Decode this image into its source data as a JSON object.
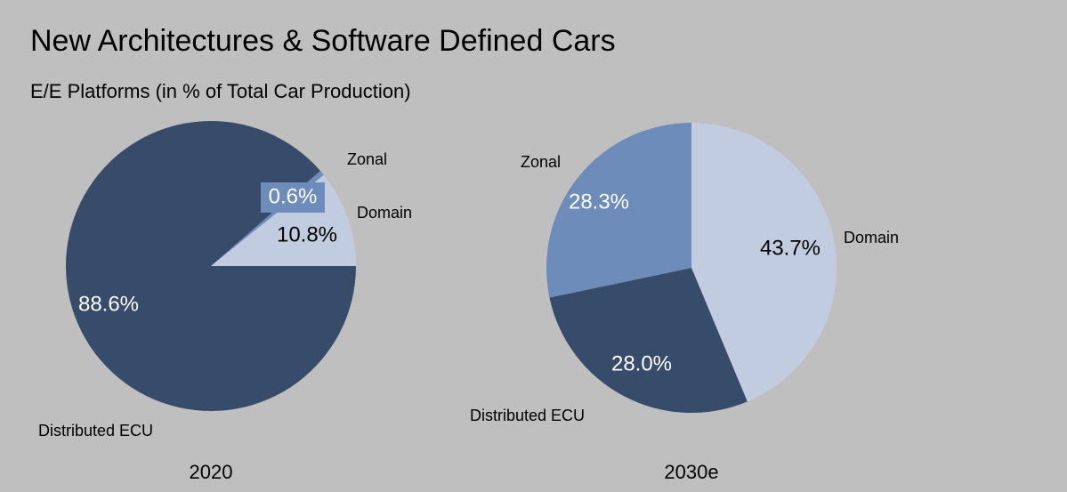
{
  "header": {
    "title": "New Architectures & Software Defined Cars",
    "subtitle": "E/E Platforms (in % of Total Car Production)"
  },
  "chart_data": [
    {
      "type": "pie",
      "title": "2020",
      "categories": [
        "Zonal",
        "Domain",
        "Distributed ECU"
      ],
      "values": [
        0.6,
        10.8,
        88.6
      ],
      "value_labels": [
        "0.6%",
        "10.8%",
        "88.6%"
      ],
      "colors": [
        "#6d8cba",
        "#c2cce0",
        "#374b6a"
      ]
    },
    {
      "type": "pie",
      "title": "2030e",
      "categories": [
        "Domain",
        "Distributed ECU",
        "Zonal"
      ],
      "values": [
        43.7,
        28.0,
        28.3
      ],
      "value_labels": [
        "43.7%",
        "28.0%",
        "28.3%"
      ],
      "colors": [
        "#c2cce0",
        "#374b6a",
        "#6d8cba"
      ]
    }
  ]
}
